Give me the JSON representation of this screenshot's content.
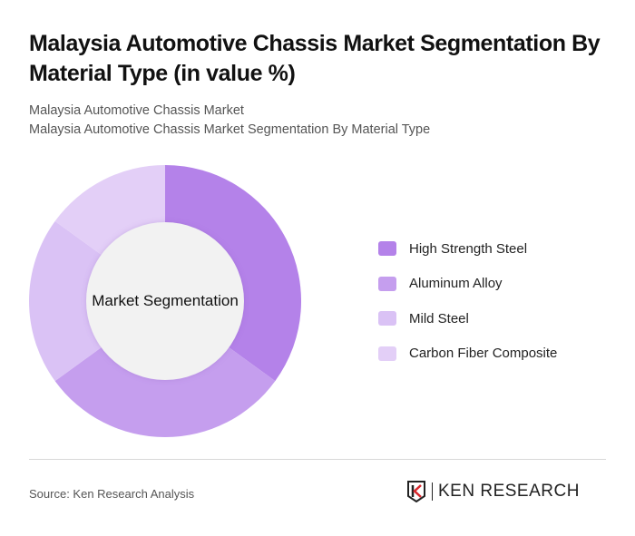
{
  "header": {
    "title": "Malaysia Automotive Chassis Market Segmentation By Material Type (in value %)",
    "subtitle_1": "Malaysia Automotive Chassis Market",
    "subtitle_2": "Malaysia Automotive Chassis Market Segmentation By Material Type"
  },
  "chart": {
    "center_label": "Market Segmentation"
  },
  "legend": [
    {
      "label": "High Strength Steel",
      "color": "#b482e9"
    },
    {
      "label": "Aluminum Alloy",
      "color": "#c59eee"
    },
    {
      "label": "Mild Steel",
      "color": "#dac2f5"
    },
    {
      "label": "Carbon Fiber Composite",
      "color": "#e3cff7"
    }
  ],
  "footer": {
    "source": "Source: Ken Research Analysis",
    "logo_text": "KEN RESEARCH"
  },
  "chart_data": {
    "type": "pie",
    "donut": true,
    "title": "Malaysia Automotive Chassis Market Segmentation By Material Type (in value %)",
    "center_label": "Market Segmentation",
    "categories": [
      "High Strength Steel",
      "Aluminum Alloy",
      "Mild Steel",
      "Carbon Fiber Composite"
    ],
    "values": [
      35,
      30,
      20,
      15
    ],
    "colors": [
      "#b482e9",
      "#c59eee",
      "#dac2f5",
      "#e3cff7"
    ],
    "legend_position": "right"
  }
}
